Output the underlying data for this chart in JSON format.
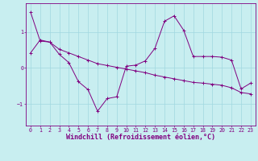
{
  "xlabel": "Windchill (Refroidissement éolien,°C)",
  "bg_color": "#c8eef0",
  "line_color": "#800080",
  "xlim": [
    -0.5,
    23.5
  ],
  "ylim": [
    -1.6,
    1.8
  ],
  "yticks": [
    -1,
    0,
    1
  ],
  "xticks": [
    0,
    1,
    2,
    3,
    4,
    5,
    6,
    7,
    8,
    9,
    10,
    11,
    12,
    13,
    14,
    15,
    16,
    17,
    18,
    19,
    20,
    21,
    22,
    23
  ],
  "line1_x": [
    0,
    1,
    2,
    3,
    4,
    5,
    6,
    7,
    8,
    9,
    10,
    11,
    12,
    13,
    14,
    15,
    16,
    17,
    18,
    19,
    20,
    21,
    22,
    23
  ],
  "line1_y": [
    1.55,
    0.75,
    0.72,
    0.38,
    0.15,
    -0.38,
    -0.6,
    -1.2,
    -0.85,
    -0.8,
    0.05,
    0.08,
    0.2,
    0.55,
    1.3,
    1.45,
    1.05,
    0.32,
    0.32,
    0.32,
    0.3,
    0.22,
    -0.58,
    -0.42
  ],
  "line2_x": [
    0,
    1,
    2,
    3,
    4,
    5,
    6,
    7,
    8,
    9,
    10,
    11,
    12,
    13,
    14,
    15,
    16,
    17,
    18,
    19,
    20,
    21,
    22,
    23
  ],
  "line2_y": [
    0.42,
    0.78,
    0.72,
    0.52,
    0.42,
    0.32,
    0.22,
    0.12,
    0.07,
    0.02,
    -0.03,
    -0.08,
    -0.13,
    -0.2,
    -0.25,
    -0.3,
    -0.35,
    -0.4,
    -0.42,
    -0.45,
    -0.48,
    -0.55,
    -0.68,
    -0.72
  ],
  "grid_color": "#a0d8e0",
  "tick_fontsize": 4.8,
  "xlabel_fontsize": 6.0,
  "figwidth": 3.2,
  "figheight": 2.0,
  "dpi": 100
}
